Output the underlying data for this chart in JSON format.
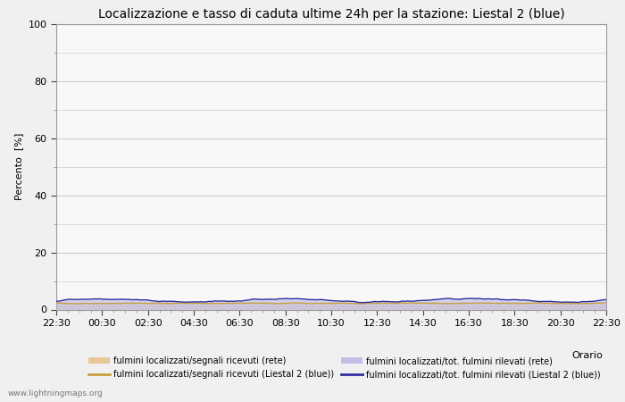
{
  "title": "Localizzazione e tasso di caduta ultime 24h per la stazione: Liestal 2 (blue)",
  "xlabel": "Orario",
  "ylabel": "Percento  [%]",
  "ylim": [
    0,
    100
  ],
  "yticks_major": [
    0,
    20,
    40,
    60,
    80,
    100
  ],
  "yticks_minor": [
    10,
    30,
    50,
    70,
    90
  ],
  "xtick_labels": [
    "22:30",
    "00:30",
    "02:30",
    "04:30",
    "06:30",
    "08:30",
    "10:30",
    "12:30",
    "14:30",
    "16:30",
    "18:30",
    "20:30",
    "22:30"
  ],
  "n_points": 481,
  "fill_rete_color": "#e8c898",
  "fill_rete_alpha": 0.7,
  "fill_liestal_color": "#c0c0e8",
  "fill_liestal_alpha": 0.7,
  "line_rete_color": "#c8a040",
  "line_liestal_color": "#3030a0",
  "line_width": 1.0,
  "background_color": "#f0f0f0",
  "plot_bg_color": "#f8f8f8",
  "grid_color": "#cccccc",
  "watermark": "www.lightningmaps.org",
  "legend_entries": [
    "fulmini localizzati/segnali ricevuti (rete)",
    "fulmini localizzati/segnali ricevuti (Liestal 2 (blue))",
    "fulmini localizzati/tot. fulmini rilevati (rete)",
    "fulmini localizzati/tot. fulmini rilevati (Liestal 2 (blue))"
  ],
  "title_fontsize": 10,
  "axis_fontsize": 8,
  "tick_fontsize": 8,
  "legend_fontsize": 7
}
